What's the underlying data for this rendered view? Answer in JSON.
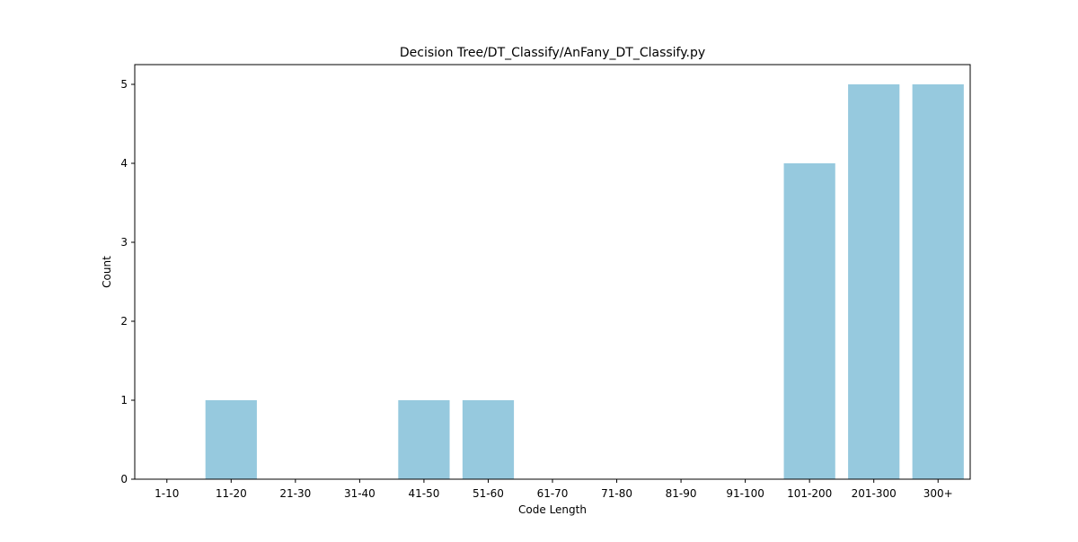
{
  "chart_data": {
    "type": "bar",
    "title": "Decision Tree/DT_Classify/AnFany_DT_Classify.py",
    "xlabel": "Code Length",
    "ylabel": "Count",
    "categories": [
      "1-10",
      "11-20",
      "21-30",
      "31-40",
      "41-50",
      "51-60",
      "61-70",
      "71-80",
      "81-90",
      "91-100",
      "101-200",
      "201-300",
      "300+"
    ],
    "values": [
      0,
      1,
      0,
      0,
      1,
      1,
      0,
      0,
      0,
      0,
      4,
      5,
      5
    ],
    "yticks": [
      "0",
      "1",
      "2",
      "3",
      "4",
      "5"
    ],
    "ylim": [
      0,
      5.25
    ],
    "grid": false,
    "legend": "none",
    "colors": {
      "bar": "#96c9de",
      "axis": "#000000",
      "background": "#ffffff"
    }
  }
}
